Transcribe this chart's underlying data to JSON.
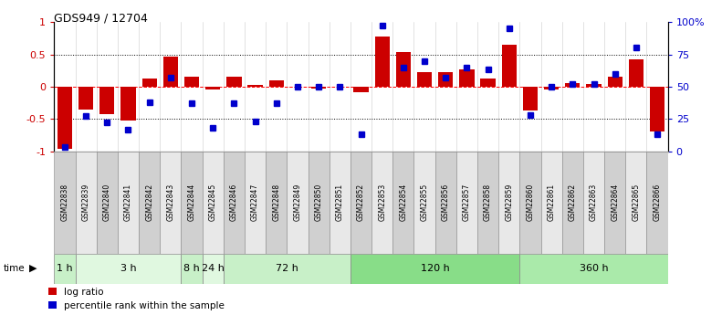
{
  "title": "GDS949 / 12704",
  "samples": [
    "GSM22838",
    "GSM22839",
    "GSM22840",
    "GSM22841",
    "GSM22842",
    "GSM22843",
    "GSM22844",
    "GSM22845",
    "GSM22846",
    "GSM22847",
    "GSM22848",
    "GSM22849",
    "GSM22850",
    "GSM22851",
    "GSM22852",
    "GSM22853",
    "GSM22854",
    "GSM22855",
    "GSM22856",
    "GSM22857",
    "GSM22858",
    "GSM22859",
    "GSM22860",
    "GSM22861",
    "GSM22862",
    "GSM22863",
    "GSM22864",
    "GSM22865",
    "GSM22866"
  ],
  "log_ratio": [
    -0.97,
    -0.35,
    -0.43,
    -0.52,
    0.13,
    0.47,
    0.15,
    -0.05,
    0.16,
    0.02,
    0.1,
    0.0,
    -0.03,
    0.0,
    -0.08,
    0.78,
    0.53,
    0.22,
    0.22,
    0.27,
    0.13,
    0.65,
    -0.37,
    -0.05,
    0.05,
    0.04,
    0.16,
    0.42,
    -0.7
  ],
  "percentile": [
    3,
    27,
    22,
    17,
    38,
    57,
    37,
    18,
    37,
    23,
    37,
    50,
    50,
    50,
    13,
    97,
    65,
    70,
    57,
    65,
    63,
    95,
    28,
    50,
    52,
    52,
    60,
    80,
    13
  ],
  "time_groups": [
    {
      "label": "1 h",
      "start": 0,
      "end": 1,
      "color": "#c8f0c8"
    },
    {
      "label": "3 h",
      "start": 1,
      "end": 6,
      "color": "#e0f8e0"
    },
    {
      "label": "8 h",
      "start": 6,
      "end": 7,
      "color": "#c8f0c8"
    },
    {
      "label": "24 h",
      "start": 7,
      "end": 8,
      "color": "#e0f8e0"
    },
    {
      "label": "72 h",
      "start": 8,
      "end": 14,
      "color": "#c8f0c8"
    },
    {
      "label": "120 h",
      "start": 14,
      "end": 22,
      "color": "#88dd88"
    },
    {
      "label": "360 h",
      "start": 22,
      "end": 29,
      "color": "#aaeaaa"
    }
  ],
  "bar_color": "#cc0000",
  "dot_color": "#0000cc",
  "bg_color": "#ffffff",
  "left_yticks": [
    -1.0,
    -0.5,
    0.0,
    0.5,
    1.0
  ],
  "right_yticks": [
    0,
    25,
    50,
    75,
    100
  ],
  "right_yticklabels": [
    "0",
    "25",
    "50",
    "75",
    "100%"
  ],
  "ylim_left": [
    -1.0,
    1.0
  ],
  "ylim_right": [
    0,
    100
  ],
  "cell_colors": [
    "#d0d0d0",
    "#e8e8e8"
  ]
}
